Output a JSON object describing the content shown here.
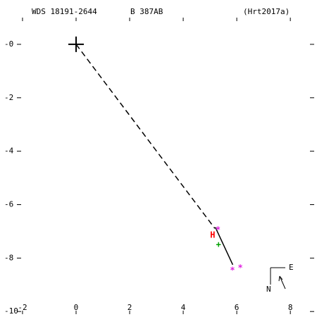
{
  "chart_data": {
    "type": "scatter",
    "title": "WDS 18191-2644",
    "subtitle": "B   387AB",
    "reference": "(Hrt2017a)",
    "xlim": [
      -2.63,
      8.89
    ],
    "ylim": [
      -10.1,
      1.0
    ],
    "xticks": [
      -2,
      0,
      2,
      4,
      6,
      8
    ],
    "yticks": [
      {
        "value": 0,
        "label": "-0"
      },
      -2,
      -4,
      -6,
      -8,
      -10
    ],
    "series": [
      {
        "x": [
          0,
          5.18
        ],
        "y": [
          0,
          -6.89
        ],
        "color": "#000000",
        "style": "dashed"
      },
      {
        "x": [
          5.2,
          5.85
        ],
        "y": [
          -6.85,
          -8.25
        ],
        "color": "#000000",
        "style": "solid"
      },
      {
        "x": [
          0
        ],
        "y": [
          0
        ],
        "color": "#000000",
        "marker": "cross"
      },
      {
        "x": [
          5.1
        ],
        "y": [
          -7.15
        ],
        "color": "#ff0000",
        "marker": "H"
      },
      {
        "x": [
          5.3,
          5.84,
          6.13
        ],
        "y": [
          -6.95,
          -8.47,
          -8.37
        ],
        "color": "#e020e0",
        "marker": "*"
      },
      {
        "x": [
          5.32
        ],
        "y": [
          -7.5
        ],
        "color": "#00a000",
        "marker": "+"
      }
    ],
    "compass": {
      "north": "N",
      "east": "E"
    }
  }
}
